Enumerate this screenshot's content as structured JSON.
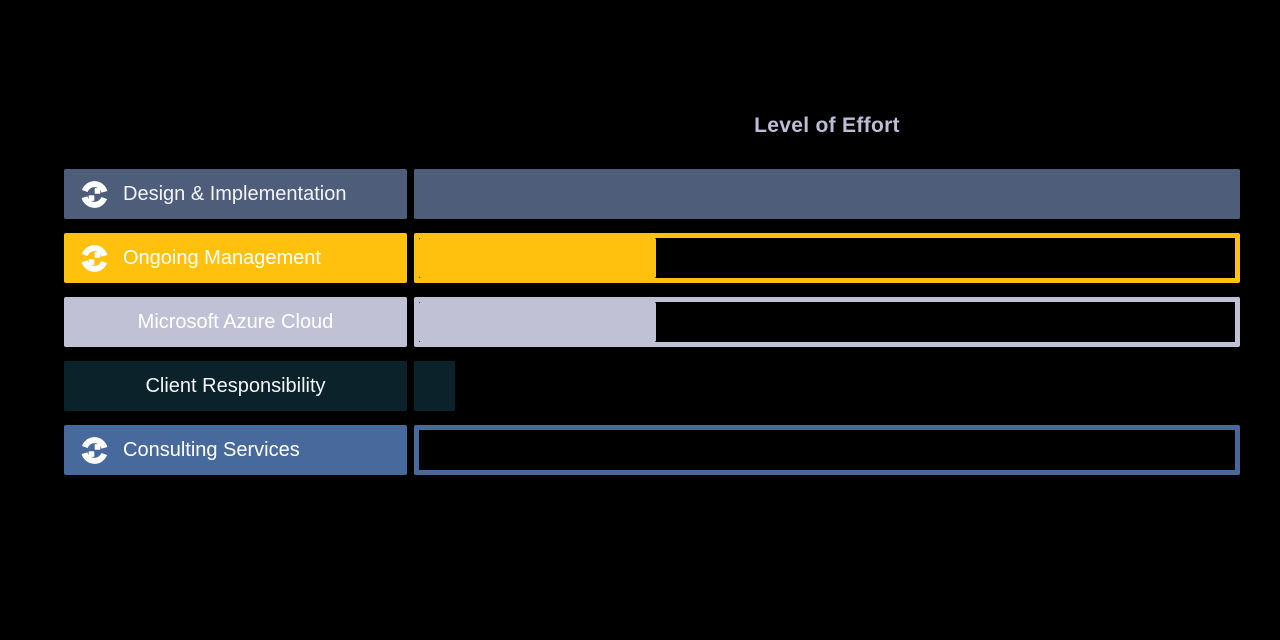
{
  "page": {
    "background_color": "#000000"
  },
  "header": {
    "title": "Level of Effort",
    "title_color": "#BDBDD3"
  },
  "chart_data": {
    "type": "bar",
    "orientation": "horizontal",
    "title": "Level of Effort",
    "xlabel": "",
    "ylabel": "",
    "xlim": [
      0,
      100
    ],
    "grid": false,
    "legend": false,
    "value_meaning": "fill percent of full-width effort bar",
    "categories": [
      "Design & Implementation",
      "Ongoing Management",
      "Microsoft Azure Cloud",
      "Client Responsibility",
      "Consulting Services"
    ],
    "values": [
      100,
      29,
      29,
      5,
      0
    ],
    "rows": [
      {
        "label": "Design & Implementation",
        "value": 100,
        "color": "#4E5E7A",
        "outlined": false,
        "icon": "brand-ring-icon",
        "label_text_color": "#F2F4F7"
      },
      {
        "label": "Ongoing Management",
        "value": 29,
        "color": "#FFC10D",
        "outlined": true,
        "icon": "brand-ring-icon",
        "label_text_color": "#FFFFFF"
      },
      {
        "label": "Microsoft Azure Cloud",
        "value": 29,
        "color": "#C1C1D5",
        "outlined": true,
        "icon": null,
        "label_text_color": "#FFFFFF"
      },
      {
        "label": "Client Responsibility",
        "value": 5,
        "color": "#0B222A",
        "outlined": false,
        "icon": null,
        "label_text_color": "#F2F4F7"
      },
      {
        "label": "Consulting Services",
        "value": 0,
        "color": "#47699B",
        "outlined": true,
        "icon": "brand-ring-icon",
        "label_text_color": "#FFFFFF"
      }
    ]
  }
}
